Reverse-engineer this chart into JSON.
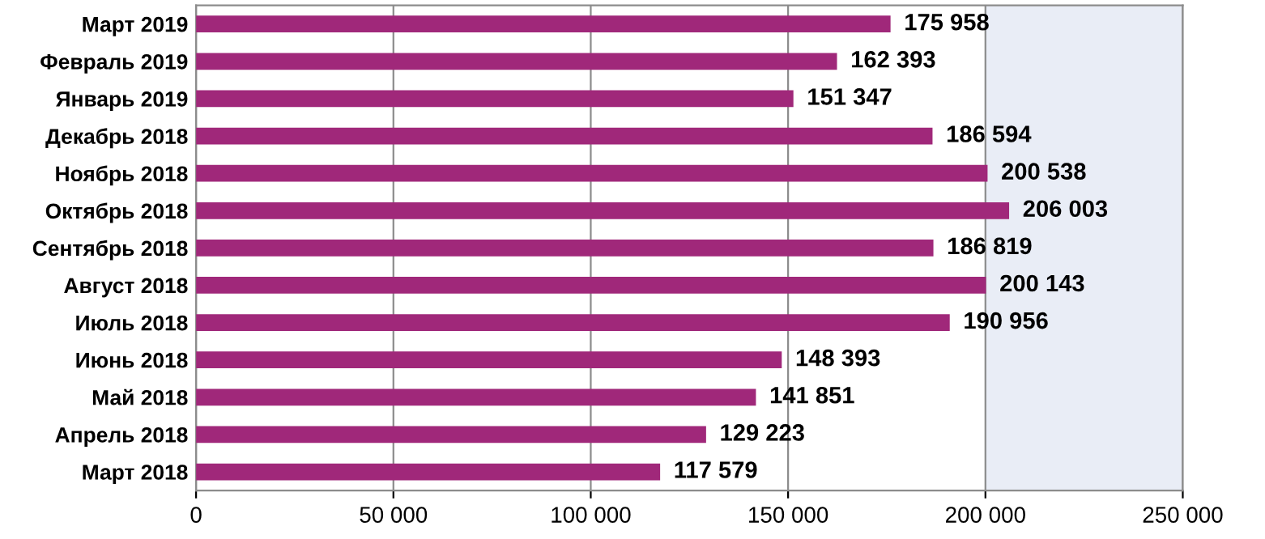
{
  "chart_data": {
    "type": "bar",
    "orientation": "horizontal",
    "categories": [
      "Март 2019",
      "Февраль 2019",
      "Январь 2019",
      "Декабрь 2018",
      "Ноябрь 2018",
      "Октябрь 2018",
      "Сентябрь 2018",
      "Август 2018",
      "Июль 2018",
      "Июнь 2018",
      "Май 2018",
      "Апрель 2018",
      "Март 2018"
    ],
    "values": [
      175958,
      162393,
      151347,
      186594,
      200538,
      206003,
      186819,
      200143,
      190956,
      148393,
      141851,
      129223,
      117579
    ],
    "value_labels": [
      "175 958",
      "162 393",
      "151 347",
      "186 594",
      "200 538",
      "206 003",
      "186 819",
      "200 143",
      "190 956",
      "148 393",
      "141 851",
      "129 223",
      "117 579"
    ],
    "color": "#a0287a",
    "xlim": [
      0,
      250000
    ],
    "xticks": [
      0,
      {
        "value": 50000,
        "label": "50 000"
      },
      {
        "value": 100000,
        "label": "100 000"
      },
      {
        "value": 150000,
        "label": "150 000"
      },
      {
        "value": 200000,
        "label": "200 000"
      },
      {
        "value": 250000,
        "label": "250 000"
      }
    ],
    "bands": [
      {
        "axis": "x",
        "from": 200000,
        "to": 250000,
        "color": "#e9edf6"
      }
    ],
    "grid": "x",
    "legend": false
  }
}
